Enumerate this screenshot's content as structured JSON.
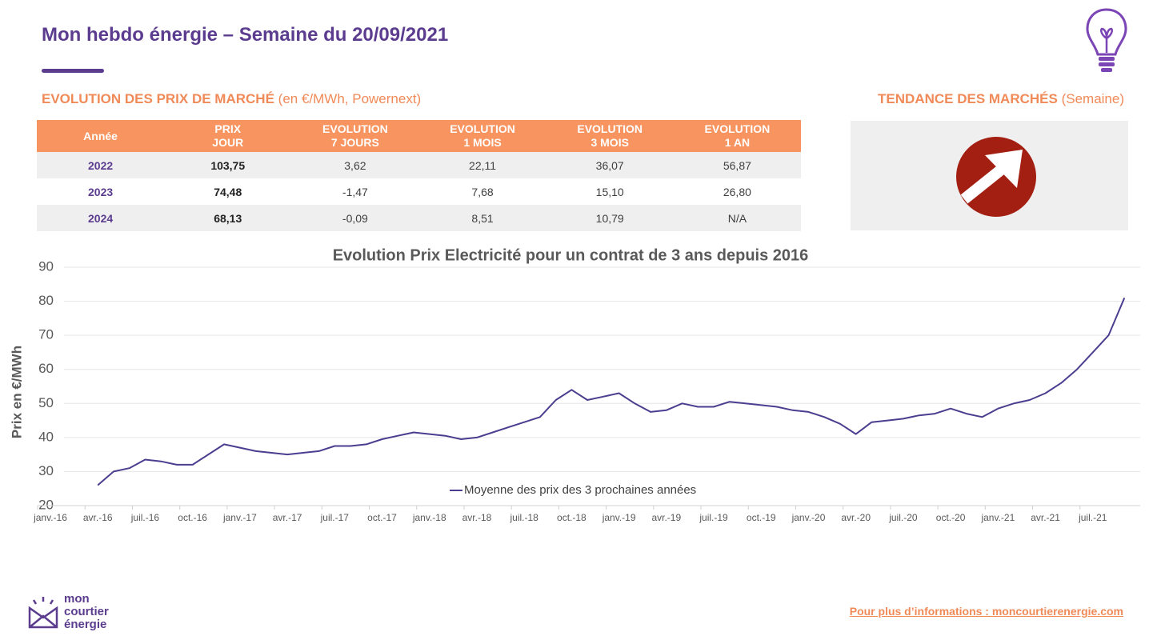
{
  "header": {
    "title": "Mon hebdo énergie – Semaine du 20/09/2021"
  },
  "table": {
    "title": "EVOLUTION DES PRIX DE MARCHÉ",
    "subtitle": "(en €/MWh, Powernext)",
    "columns": [
      "Année",
      "PRIX\nJOUR",
      "EVOLUTION\n7 JOURS",
      "EVOLUTION\n1 MOIS",
      "EVOLUTION\n3 MOIS",
      "EVOLUTION\n1 AN"
    ],
    "rows": [
      [
        "2022",
        "103,75",
        "3,62",
        "22,11",
        "36,07",
        "56,87"
      ],
      [
        "2023",
        "74,48",
        "-1,47",
        "7,68",
        "15,10",
        "26,80"
      ],
      [
        "2024",
        "68,13",
        "-0,09",
        "8,51",
        "10,79",
        "N/A"
      ]
    ]
  },
  "trend": {
    "title": "TENDANCE DES MARCHÉS",
    "subtitle": "(Semaine)"
  },
  "chart_data": {
    "type": "line",
    "title": "Evolution Prix Electricité pour un contrat de 3 ans depuis 2016",
    "y_label": "Prix en €/MWh",
    "x": [
      "2016-04",
      "2016-05",
      "2016-06",
      "2016-07",
      "2016-08",
      "2016-09",
      "2016-10",
      "2016-11",
      "2016-12",
      "2017-01",
      "2017-02",
      "2017-03",
      "2017-04",
      "2017-05",
      "2017-06",
      "2017-07",
      "2017-08",
      "2017-09",
      "2017-10",
      "2017-11",
      "2017-12",
      "2018-01",
      "2018-02",
      "2018-03",
      "2018-04",
      "2018-05",
      "2018-06",
      "2018-07",
      "2018-08",
      "2018-09",
      "2018-10",
      "2018-11",
      "2018-12",
      "2019-01",
      "2019-02",
      "2019-03",
      "2019-04",
      "2019-05",
      "2019-06",
      "2019-07",
      "2019-08",
      "2019-09",
      "2019-10",
      "2019-11",
      "2019-12",
      "2020-01",
      "2020-02",
      "2020-03",
      "2020-04",
      "2020-05",
      "2020-06",
      "2020-07",
      "2020-08",
      "2020-09",
      "2020-10",
      "2020-11",
      "2020-12",
      "2021-01",
      "2021-02",
      "2021-03",
      "2021-04",
      "2021-05",
      "2021-06",
      "2021-07",
      "2021-08",
      "2021-09"
    ],
    "series": [
      {
        "name": "Moyenne des prix des 3 prochaines années",
        "color": "#4b3d8f",
        "values": [
          26,
          30,
          31,
          33.5,
          33,
          32,
          32,
          35,
          38,
          37,
          36,
          35.5,
          35,
          35.5,
          36,
          37.5,
          37.5,
          38,
          39.5,
          40.5,
          41.5,
          41,
          40.5,
          39.5,
          40,
          41.5,
          43,
          44.5,
          46,
          51,
          54,
          51,
          52,
          53,
          50,
          47.5,
          48,
          50,
          49,
          49,
          50.5,
          50,
          49.5,
          49,
          48,
          47.5,
          46,
          44,
          41,
          44.5,
          45,
          45.5,
          46.5,
          47,
          48.5,
          47,
          46,
          48.5,
          50,
          51,
          53,
          56,
          60,
          65,
          70,
          81
        ]
      }
    ],
    "xlim": [
      "2016-01",
      "2021-10"
    ],
    "xticks": [
      {
        "value": "2016-01",
        "label": "janv.-16"
      },
      {
        "value": "2016-04",
        "label": "avr.-16"
      },
      {
        "value": "2016-07",
        "label": "juil.-16"
      },
      {
        "value": "2016-10",
        "label": "oct.-16"
      },
      {
        "value": "2017-01",
        "label": "janv.-17"
      },
      {
        "value": "2017-04",
        "label": "avr.-17"
      },
      {
        "value": "2017-07",
        "label": "juil.-17"
      },
      {
        "value": "2017-10",
        "label": "oct.-17"
      },
      {
        "value": "2018-01",
        "label": "janv.-18"
      },
      {
        "value": "2018-04",
        "label": "avr.-18"
      },
      {
        "value": "2018-07",
        "label": "juil.-18"
      },
      {
        "value": "2018-10",
        "label": "oct.-18"
      },
      {
        "value": "2019-01",
        "label": "janv.-19"
      },
      {
        "value": "2019-04",
        "label": "avr.-19"
      },
      {
        "value": "2019-07",
        "label": "juil.-19"
      },
      {
        "value": "2019-10",
        "label": "oct.-19"
      },
      {
        "value": "2020-01",
        "label": "janv.-20"
      },
      {
        "value": "2020-04",
        "label": "avr.-20"
      },
      {
        "value": "2020-07",
        "label": "juil.-20"
      },
      {
        "value": "2020-10",
        "label": "oct.-20"
      },
      {
        "value": "2021-01",
        "label": "janv.-21"
      },
      {
        "value": "2021-04",
        "label": "avr.-21"
      },
      {
        "value": "2021-07",
        "label": "juil.-21"
      }
    ],
    "ylim": [
      20,
      90
    ],
    "yticks": [
      20,
      30,
      40,
      50,
      60,
      70,
      80,
      90
    ],
    "grid": true,
    "legend": "bottom"
  },
  "footer": {
    "logo": [
      "mon",
      "courtier",
      "énergie"
    ],
    "link": "Pour plus d’informations : moncourtierenergie.com"
  }
}
